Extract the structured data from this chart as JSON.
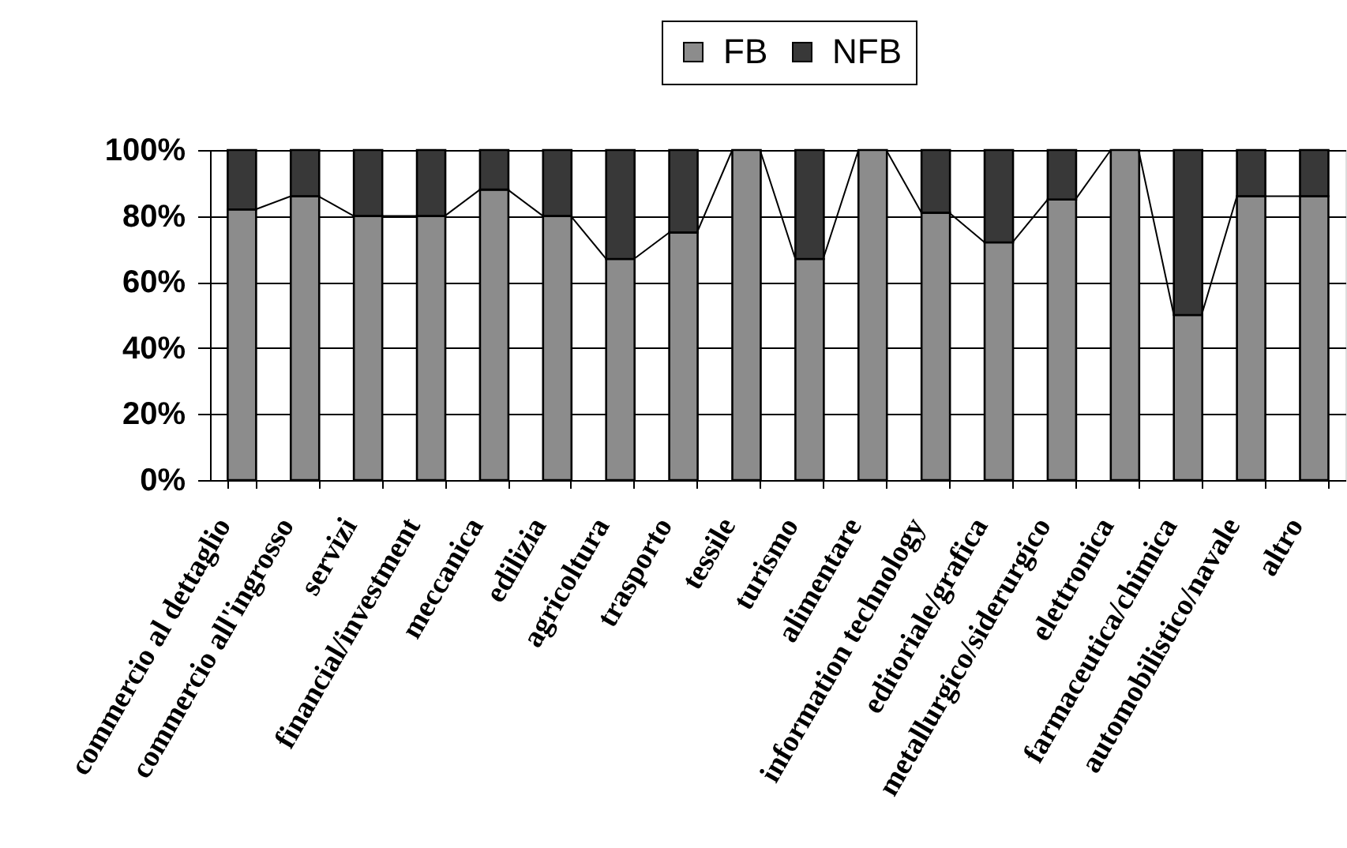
{
  "chart_data": {
    "type": "bar",
    "stacked": true,
    "categories": [
      "commercio al dettaglio",
      "commercio all'ingrosso",
      "servizi",
      "financial/investment",
      "meccanica",
      "edilizia",
      "agricoltura",
      "trasporto",
      "tessile",
      "turismo",
      "alimentare",
      "information technology",
      "editoriale/grafica",
      "metallurgico/siderurgico",
      "elettronica",
      "farmaceutica/chimica",
      "automobilistico/navale",
      "altro"
    ],
    "series": [
      {
        "name": "FB",
        "color": "#8c8c8c",
        "values": [
          82,
          86,
          80,
          80,
          88,
          80,
          67,
          75,
          100,
          67,
          100,
          81,
          72,
          85,
          100,
          50,
          86,
          86
        ]
      },
      {
        "name": "NFB",
        "color": "#383838",
        "values": [
          18,
          14,
          20,
          20,
          12,
          20,
          33,
          25,
          0,
          33,
          0,
          19,
          28,
          15,
          0,
          50,
          14,
          14
        ]
      }
    ],
    "ylim": [
      0,
      100
    ],
    "yticks": [
      {
        "value": 0,
        "label": "0%"
      },
      {
        "value": 20,
        "label": "20%"
      },
      {
        "value": 40,
        "label": "40%"
      },
      {
        "value": 60,
        "label": "60%"
      },
      {
        "value": 80,
        "label": "80%"
      },
      {
        "value": 100,
        "label": "100%"
      }
    ],
    "grid": "y",
    "legend": "top"
  }
}
